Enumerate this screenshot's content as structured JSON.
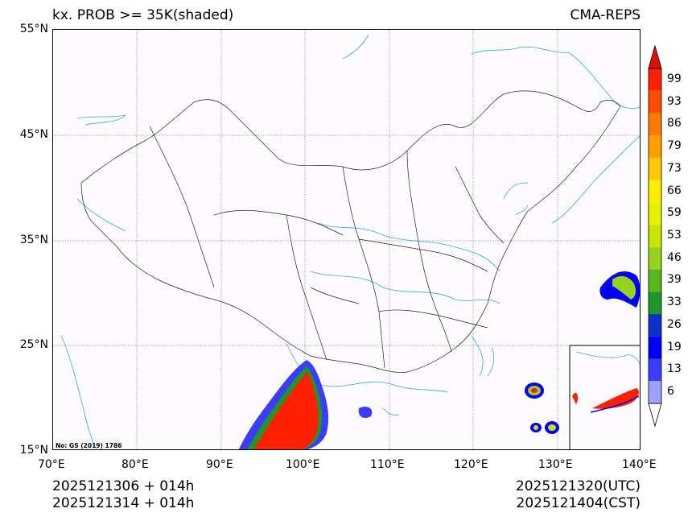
{
  "title": {
    "left": "kx. PROB >= 35K(shaded)",
    "right": "CMA-REPS"
  },
  "lat_labels": [
    "55°N",
    "45°N",
    "35°N",
    "25°N",
    "15°N"
  ],
  "lon_labels": [
    "70°E",
    "80°E",
    "90°E",
    "100°E",
    "110°E",
    "120°E",
    "130°E",
    "140°E"
  ],
  "colorbar": {
    "labels": [
      "99",
      "93",
      "86",
      "79",
      "73",
      "66",
      "59",
      "53",
      "46",
      "39",
      "33",
      "26",
      "19",
      "13",
      "6"
    ],
    "colors": [
      "#ff2000",
      "#ff4d00",
      "#ff7a00",
      "#ffa000",
      "#ffc800",
      "#ffee00",
      "#e6f000",
      "#c8e600",
      "#96d21e",
      "#5ab41e",
      "#1e9628",
      "#0a30c8",
      "#0000ff",
      "#3c3cff",
      "#a0a0ff"
    ],
    "arrow_top": "#e01000",
    "arrow_bottom": "#ffffff"
  },
  "watermark": "No: GS (2019) 1786",
  "footer": {
    "left_line1": "2025121306  +  014h",
    "left_line2": "2025121314  +  014h",
    "right_line1": "2025121320(UTC)",
    "right_line2": "2025121404(CST)"
  }
}
